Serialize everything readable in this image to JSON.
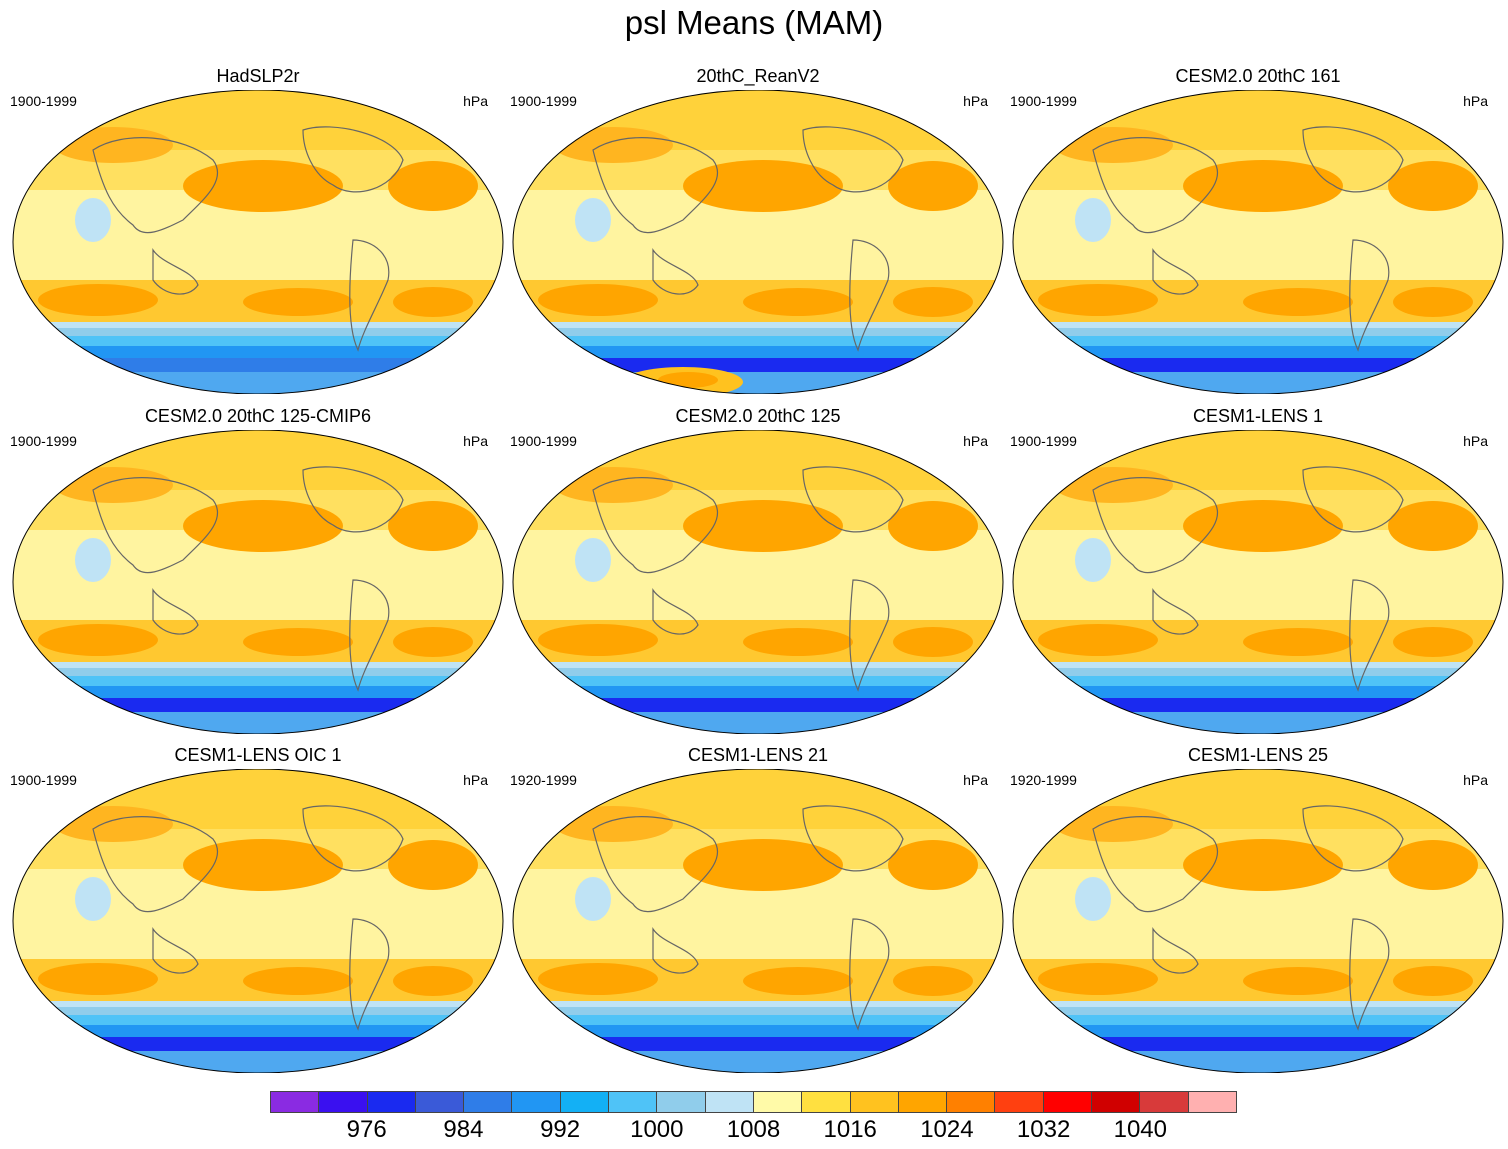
{
  "title": "psl Means (MAM)",
  "panels": [
    {
      "title": "HadSLP2r",
      "years": "1900-1999",
      "units": "hPa"
    },
    {
      "title": "20thC_ReanV2",
      "years": "1900-1999",
      "units": "hPa"
    },
    {
      "title": "CESM2.0 20thC 161",
      "years": "1900-1999",
      "units": "hPa"
    },
    {
      "title": "CESM2.0 20thC 125-CMIP6",
      "years": "1900-1999",
      "units": "hPa"
    },
    {
      "title": "CESM2.0 20thC 125",
      "years": "1900-1999",
      "units": "hPa"
    },
    {
      "title": "CESM1-LENS 1",
      "years": "1900-1999",
      "units": "hPa"
    },
    {
      "title": "CESM1-LENS OIC 1",
      "years": "1900-1999",
      "units": "hPa"
    },
    {
      "title": "CESM1-LENS 21",
      "years": "1920-1999",
      "units": "hPa"
    },
    {
      "title": "CESM1-LENS 25",
      "years": "1920-1999",
      "units": "hPa"
    }
  ],
  "colorbar": {
    "colors": [
      "#8a2be2",
      "#3a10f0",
      "#1a2af0",
      "#3a5ad8",
      "#2f7de8",
      "#2196f3",
      "#13b0f5",
      "#4fc3f7",
      "#90cdeb",
      "#bfe3f5",
      "#fffaa8",
      "#ffe040",
      "#ffc21f",
      "#ffa500",
      "#ff8000",
      "#ff4010",
      "#ff0000",
      "#d00000",
      "#d83a3a",
      "#ffb0b0"
    ],
    "labels": [
      {
        "value": "976",
        "index": 2
      },
      {
        "value": "984",
        "index": 4
      },
      {
        "value": "992",
        "index": 6
      },
      {
        "value": "1000",
        "index": 8
      },
      {
        "value": "1008",
        "index": 10
      },
      {
        "value": "1016",
        "index": 12
      },
      {
        "value": "1024",
        "index": 14
      },
      {
        "value": "1032",
        "index": 16
      },
      {
        "value": "1040",
        "index": 18
      }
    ]
  }
}
